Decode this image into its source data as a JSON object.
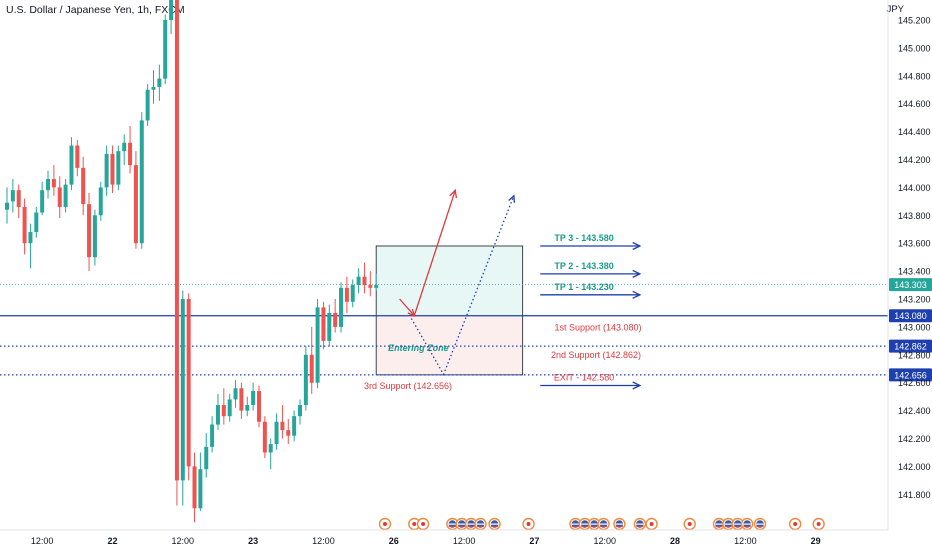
{
  "chart_data": {
    "type": "candlestick",
    "title": "U.S. Dollar / Japanese Yen, 1h, FXCM",
    "unit": "JPY",
    "ylim": [
      141.7,
      145.45
    ],
    "y_ticks": [
      141.8,
      142.0,
      142.2,
      142.4,
      142.6,
      142.8,
      143.0,
      143.2,
      143.4,
      143.6,
      143.8,
      144.0,
      144.2,
      144.4,
      144.6,
      144.8,
      145.0,
      145.2
    ],
    "y_tick_labels": [
      "141.800",
      "142.000",
      "142.200",
      "142.400",
      "142.600",
      "142.800",
      "143.000",
      "143.200",
      "143.400",
      "143.600",
      "143.800",
      "144.000",
      "144.200",
      "144.400",
      "144.600",
      "144.800",
      "145.000",
      "145.200"
    ],
    "x_ticks": [
      {
        "label": "12:00",
        "t": 6
      },
      {
        "label": "22",
        "t": 18
      },
      {
        "label": "12:00",
        "t": 30
      },
      {
        "label": "23",
        "t": 42
      },
      {
        "label": "12:00",
        "t": 54
      },
      {
        "label": "26",
        "t": 66
      },
      {
        "label": "12:00",
        "t": 78
      },
      {
        "label": "27",
        "t": 90
      },
      {
        "label": "12:00",
        "t": 102
      },
      {
        "label": "28",
        "t": 114
      },
      {
        "label": "12:00",
        "t": 126
      },
      {
        "label": "29",
        "t": 138
      }
    ],
    "colors": {
      "up": "#26a69a",
      "down": "#ef5350",
      "blue": "#1e3fae",
      "teal": "#1a9b8a",
      "red": "#e0393e"
    },
    "candles": [
      [
        143.84,
        144.0,
        143.74,
        143.89
      ],
      [
        143.9,
        144.06,
        143.82,
        143.98
      ],
      [
        143.98,
        144.02,
        143.78,
        143.86
      ],
      [
        143.86,
        143.92,
        143.52,
        143.6
      ],
      [
        143.6,
        143.74,
        143.42,
        143.68
      ],
      [
        143.68,
        143.86,
        143.64,
        143.82
      ],
      [
        143.82,
        144.04,
        143.8,
        143.98
      ],
      [
        143.98,
        144.12,
        143.92,
        144.06
      ],
      [
        144.06,
        144.16,
        143.94,
        144.0
      ],
      [
        144.0,
        144.08,
        143.78,
        143.86
      ],
      [
        143.86,
        144.06,
        143.82,
        144.02
      ],
      [
        144.02,
        144.36,
        143.98,
        144.3
      ],
      [
        144.3,
        144.34,
        144.08,
        144.14
      ],
      [
        144.14,
        144.22,
        143.8,
        143.88
      ],
      [
        143.88,
        143.96,
        143.4,
        143.5
      ],
      [
        143.5,
        143.84,
        143.44,
        143.8
      ],
      [
        143.8,
        144.04,
        143.76,
        144.0
      ],
      [
        144.0,
        144.3,
        143.94,
        144.24
      ],
      [
        144.24,
        144.3,
        143.96,
        144.02
      ],
      [
        144.02,
        144.3,
        143.98,
        144.26
      ],
      [
        144.26,
        144.38,
        144.16,
        144.32
      ],
      [
        144.32,
        144.44,
        144.1,
        144.16
      ],
      [
        144.16,
        144.26,
        143.56,
        143.6
      ],
      [
        143.6,
        144.54,
        143.56,
        144.48
      ],
      [
        144.48,
        144.74,
        144.44,
        144.7
      ],
      [
        144.7,
        144.84,
        144.6,
        144.72
      ],
      [
        144.72,
        144.88,
        144.62,
        144.78
      ],
      [
        144.78,
        145.24,
        144.74,
        145.2
      ],
      [
        145.2,
        145.42,
        145.1,
        145.38
      ],
      [
        145.38,
        145.45,
        141.72,
        141.9
      ],
      [
        141.9,
        143.26,
        141.72,
        143.2
      ],
      [
        143.2,
        143.24,
        141.9,
        142.0
      ],
      [
        142.0,
        142.1,
        141.6,
        141.7
      ],
      [
        141.7,
        142.1,
        141.68,
        141.98
      ],
      [
        141.98,
        142.24,
        141.92,
        142.14
      ],
      [
        142.14,
        142.36,
        142.1,
        142.3
      ],
      [
        142.3,
        142.52,
        142.26,
        142.44
      ],
      [
        142.44,
        142.56,
        142.3,
        142.36
      ],
      [
        142.36,
        142.52,
        142.32,
        142.48
      ],
      [
        142.48,
        142.62,
        142.42,
        142.56
      ],
      [
        142.56,
        142.6,
        142.34,
        142.4
      ],
      [
        142.4,
        142.5,
        142.36,
        142.44
      ],
      [
        142.44,
        142.6,
        142.4,
        142.54
      ],
      [
        142.54,
        142.58,
        142.28,
        142.32
      ],
      [
        142.32,
        142.36,
        142.06,
        142.1
      ],
      [
        142.1,
        142.2,
        141.98,
        142.16
      ],
      [
        142.16,
        142.38,
        142.12,
        142.32
      ],
      [
        142.32,
        142.44,
        142.2,
        142.26
      ],
      [
        142.26,
        142.34,
        142.16,
        142.22
      ],
      [
        142.22,
        142.4,
        142.18,
        142.36
      ],
      [
        142.36,
        142.48,
        142.3,
        142.44
      ],
      [
        142.44,
        142.86,
        142.4,
        142.8
      ],
      [
        142.8,
        143.0,
        142.52,
        142.6
      ],
      [
        142.6,
        143.2,
        142.56,
        143.14
      ],
      [
        143.14,
        143.18,
        142.84,
        142.9
      ],
      [
        142.9,
        143.16,
        142.86,
        143.1
      ],
      [
        143.1,
        143.2,
        142.96,
        143.0
      ],
      [
        143.0,
        143.32,
        142.96,
        143.28
      ],
      [
        143.28,
        143.36,
        143.1,
        143.18
      ],
      [
        143.18,
        143.34,
        143.14,
        143.3
      ],
      [
        143.3,
        143.42,
        143.24,
        143.36
      ],
      [
        143.36,
        143.46,
        143.24,
        143.3
      ],
      [
        143.3,
        143.4,
        143.22,
        143.28
      ],
      [
        143.28,
        143.38,
        143.26,
        143.3
      ]
    ],
    "current_price": {
      "value": 143.303,
      "label": "143.303"
    },
    "price_levels": [
      {
        "label": "143.080",
        "value": 143.08,
        "style": "solid"
      },
      {
        "label": "142.862",
        "value": 142.862,
        "style": "dotted"
      },
      {
        "label": "142.656",
        "value": 142.656,
        "style": "dotted"
      }
    ],
    "annotations": {
      "entering_zone": {
        "label": "Entering Zone",
        "t_start": 63,
        "t_end": 88,
        "top": 143.58,
        "mid": 143.08,
        "bottom": 142.656
      },
      "targets": [
        {
          "label": "TP 3 - 143.580",
          "value": 143.58,
          "t_start": 91,
          "t_end": 108
        },
        {
          "label": "TP 2 - 143.380",
          "value": 143.38,
          "t_start": 91,
          "t_end": 108
        },
        {
          "label": "TP 1 - 143.230",
          "value": 143.23,
          "t_start": 91,
          "t_end": 108
        }
      ],
      "supports": [
        {
          "label": "1st Support (143.080)",
          "value": 143.08
        },
        {
          "label": "2nd Support (142.862)",
          "value": 142.862
        },
        {
          "label": "3rd Support (142.656)",
          "value": 142.656
        }
      ],
      "exit": {
        "label": "EXIT - 142.580",
        "value": 142.58,
        "t_start": 91,
        "t_end": 108
      },
      "red_path": [
        [
          67,
          143.2
        ],
        [
          69.5,
          143.08
        ],
        [
          76.5,
          143.98
        ]
      ],
      "dotted_path": [
        [
          69,
          143.06
        ],
        [
          74.5,
          142.66
        ],
        [
          86.5,
          143.94
        ]
      ]
    },
    "event_markers": [
      {
        "t": 64.5,
        "type": "circle"
      },
      {
        "t": 69.5,
        "type": "circle"
      },
      {
        "t": 71,
        "type": "circle"
      },
      {
        "t": 76,
        "type": "flag"
      },
      {
        "t": 77.6,
        "type": "flag"
      },
      {
        "t": 79.2,
        "type": "flag"
      },
      {
        "t": 80.8,
        "type": "flag"
      },
      {
        "t": 83.2,
        "type": "flag"
      },
      {
        "t": 89,
        "type": "circle"
      },
      {
        "t": 97,
        "type": "flag"
      },
      {
        "t": 98.6,
        "type": "flag"
      },
      {
        "t": 100.2,
        "type": "flag"
      },
      {
        "t": 101.8,
        "type": "flag"
      },
      {
        "t": 104.5,
        "type": "flag"
      },
      {
        "t": 108,
        "type": "flag"
      },
      {
        "t": 110,
        "type": "circle"
      },
      {
        "t": 116.5,
        "type": "circle"
      },
      {
        "t": 121.5,
        "type": "flag"
      },
      {
        "t": 123.1,
        "type": "flag"
      },
      {
        "t": 124.7,
        "type": "flag"
      },
      {
        "t": 126.3,
        "type": "flag"
      },
      {
        "t": 128.5,
        "type": "flag"
      },
      {
        "t": 134.5,
        "type": "circle"
      },
      {
        "t": 138.5,
        "type": "circle"
      }
    ]
  }
}
